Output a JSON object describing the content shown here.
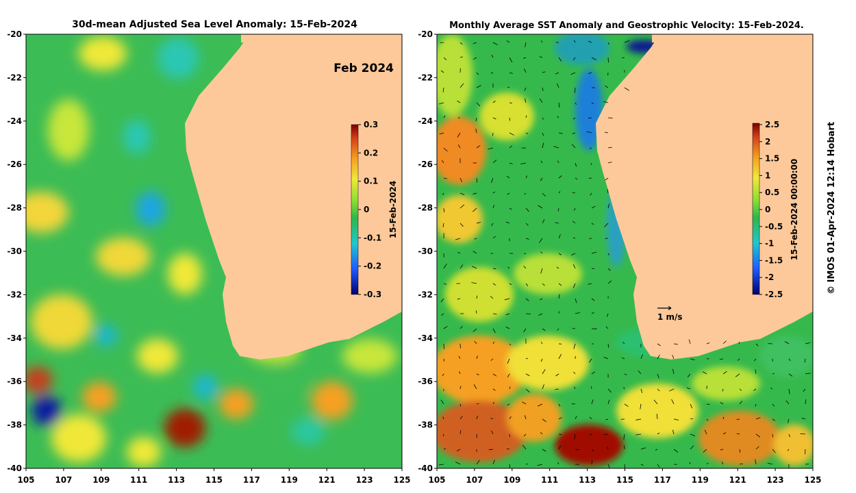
{
  "left_panel": {
    "title": "30d-mean Adjusted Sea Level Anomaly: 15-Feb-2024",
    "month_label": "Feb 2024",
    "colorbar": {
      "ticks": [
        "0.3",
        "0.2",
        "0.1",
        "0",
        "-0.1",
        "-0.2",
        "-0.3"
      ],
      "label": "15-Feb-2024"
    },
    "y_ticks": [
      "-20",
      "-22",
      "-24",
      "-26",
      "-28",
      "-30",
      "-32",
      "-34",
      "-36",
      "-38",
      "-40"
    ],
    "x_ticks": [
      "105",
      "107",
      "109",
      "111",
      "113",
      "115",
      "117",
      "119",
      "121",
      "123",
      "125"
    ]
  },
  "right_panel": {
    "title": "Monthly Average SST Anomaly  and Geostrophic Velocity: 15-Feb-2024.",
    "colorbar": {
      "ticks": [
        "2.5",
        "2",
        "1.5",
        "1",
        "0.5",
        "0",
        "-0.5",
        "-1",
        "-1.5",
        "-2",
        "-2.5"
      ],
      "label": "15-Feb-2024 00:00:00"
    },
    "velocity_reference": "1 m/s",
    "y_ticks": [
      "-20",
      "-22",
      "-24",
      "-26",
      "-28",
      "-30",
      "-32",
      "-34",
      "-36",
      "-38",
      "-40"
    ],
    "x_ticks": [
      "105",
      "107",
      "109",
      "111",
      "113",
      "115",
      "117",
      "119",
      "121",
      "123",
      "125"
    ]
  },
  "credit": "© IMOS 01-Apr-2024 12:14 Hobart",
  "colors": {
    "land": "#fdc99a",
    "ocean_base": "#2db84a",
    "positive_high": "#a00000",
    "negative_low": "#0a1aa0"
  }
}
